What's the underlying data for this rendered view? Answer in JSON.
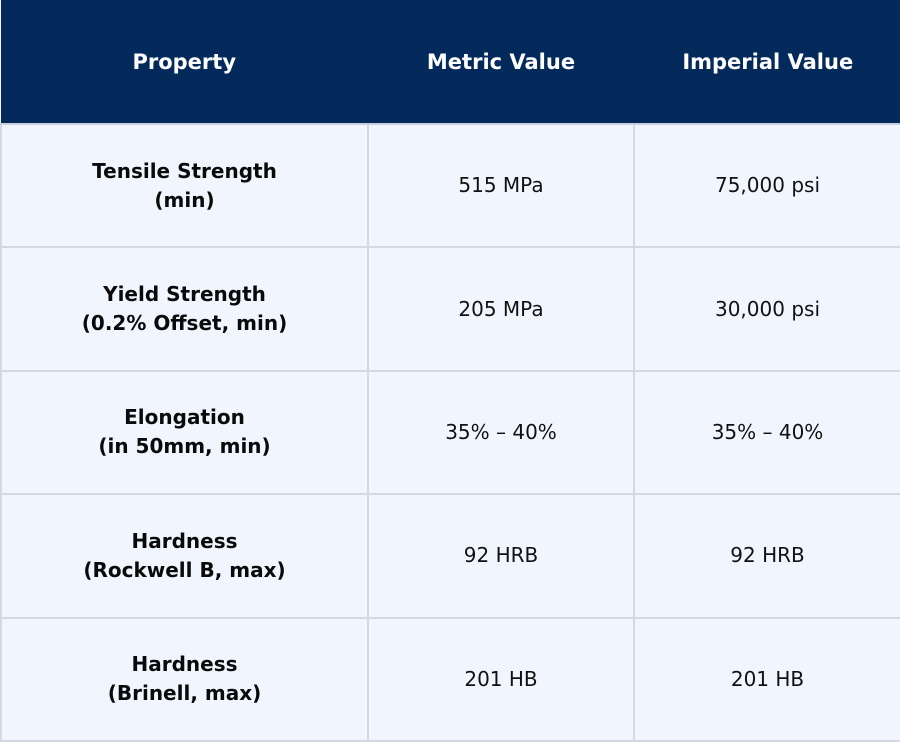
{
  "table": {
    "headers": [
      "Property",
      "Metric Value",
      "Imperial Value"
    ],
    "rows": [
      {
        "property_line1": "Tensile Strength",
        "property_line2": "(min)",
        "metric": "515 MPa",
        "imperial": "75,000 psi"
      },
      {
        "property_line1": "Yield Strength",
        "property_line2": "(0.2% Offset, min)",
        "metric": "205 MPa",
        "imperial": "30,000 psi"
      },
      {
        "property_line1": "Elongation",
        "property_line2": "(in 50mm, min)",
        "metric": "35% – 40%",
        "imperial": "35% – 40%"
      },
      {
        "property_line1": "Hardness",
        "property_line2": "(Rockwell B, max)",
        "metric": "92 HRB",
        "imperial": "92 HRB"
      },
      {
        "property_line1": "Hardness",
        "property_line2": "(Brinell, max)",
        "metric": "201 HB",
        "imperial": "201 HB"
      }
    ]
  },
  "colors": {
    "header_bg": "#042a5c",
    "header_text": "#ffffff",
    "cell_bg": "#f1f6fe",
    "border": "#d3d9e3",
    "cell_text": "#111111"
  }
}
